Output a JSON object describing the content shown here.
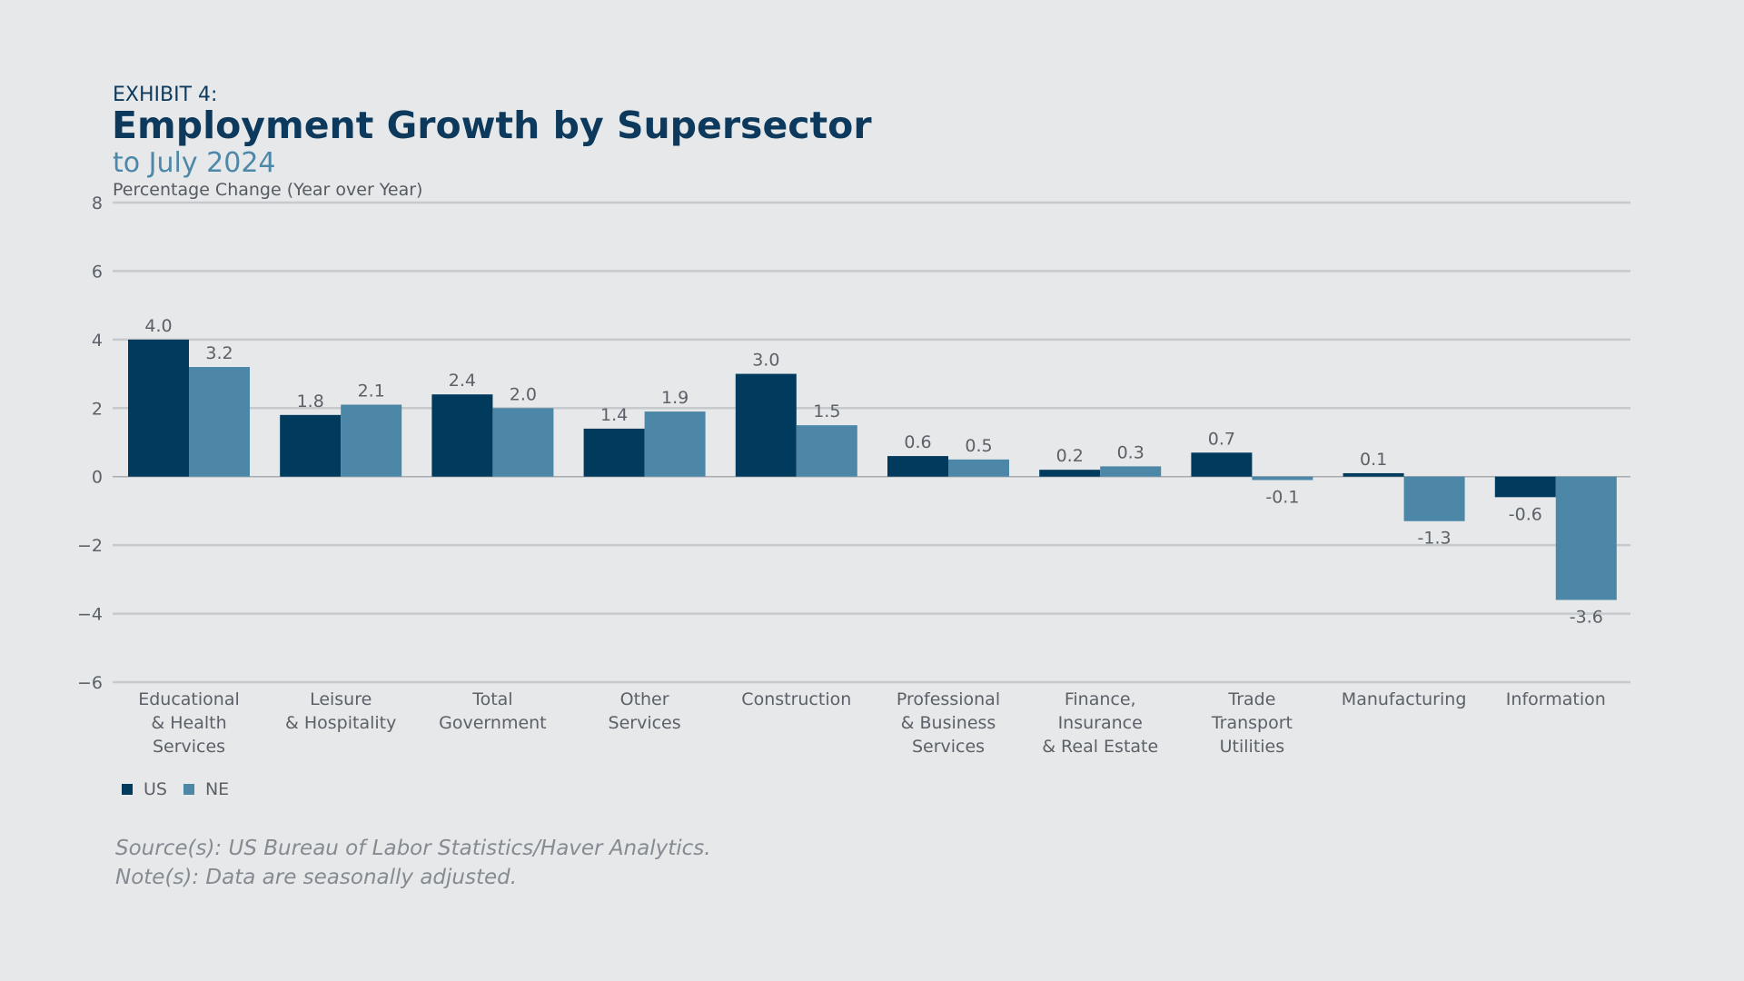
{
  "header": {
    "exhibit": "EXHIBIT 4:",
    "title": "Employment Growth by Supersector",
    "subtitle": "to July 2024",
    "ylabel": "Percentage Change (Year over Year)"
  },
  "colors": {
    "us": "#003a5d",
    "ne": "#4c87a7",
    "grid": "#c7cacd",
    "text": "#5b6167",
    "background": "#e6e8ea"
  },
  "chart_data": {
    "type": "bar",
    "ylim": [
      -6,
      8
    ],
    "yticks": [
      "8",
      "6",
      "4",
      "2",
      "0",
      "−2",
      "−4",
      "−6"
    ],
    "ytick_values": [
      8,
      6,
      4,
      2,
      0,
      -2,
      -4,
      -6
    ],
    "grid": true,
    "legend_position": "bottom-left",
    "categories": [
      [
        "Educational",
        "& Health",
        "Services"
      ],
      [
        "Leisure",
        "& Hospitality"
      ],
      [
        "Total",
        "Government"
      ],
      [
        "Other",
        "Services"
      ],
      [
        "Construction"
      ],
      [
        "Professional",
        "& Business",
        "Services"
      ],
      [
        "Finance,",
        "Insurance",
        "& Real Estate"
      ],
      [
        "Trade",
        "Transport",
        "Utilities"
      ],
      [
        "Manufacturing"
      ],
      [
        "Information"
      ]
    ],
    "series": [
      {
        "name": "US",
        "values": [
          4.0,
          1.8,
          2.4,
          1.4,
          3.0,
          0.6,
          0.2,
          0.7,
          0.1,
          -0.6
        ],
        "labels": [
          "4.0",
          "1.8",
          "2.4",
          "1.4",
          "3.0",
          "0.6",
          "0.2",
          "0.7",
          "0.1",
          "-0.6"
        ]
      },
      {
        "name": "NE",
        "values": [
          3.2,
          2.1,
          2.0,
          1.9,
          1.5,
          0.5,
          0.3,
          -0.1,
          -1.3,
          -3.6
        ],
        "labels": [
          "3.2",
          "2.1",
          "2.0",
          "1.9",
          "1.5",
          "0.5",
          "0.3",
          "-0.1",
          "-1.3",
          "-3.6"
        ]
      }
    ]
  },
  "footer": {
    "source": "Source(s): US Bureau of Labor Statistics/Haver Analytics.",
    "note": "Note(s): Data are seasonally adjusted."
  }
}
